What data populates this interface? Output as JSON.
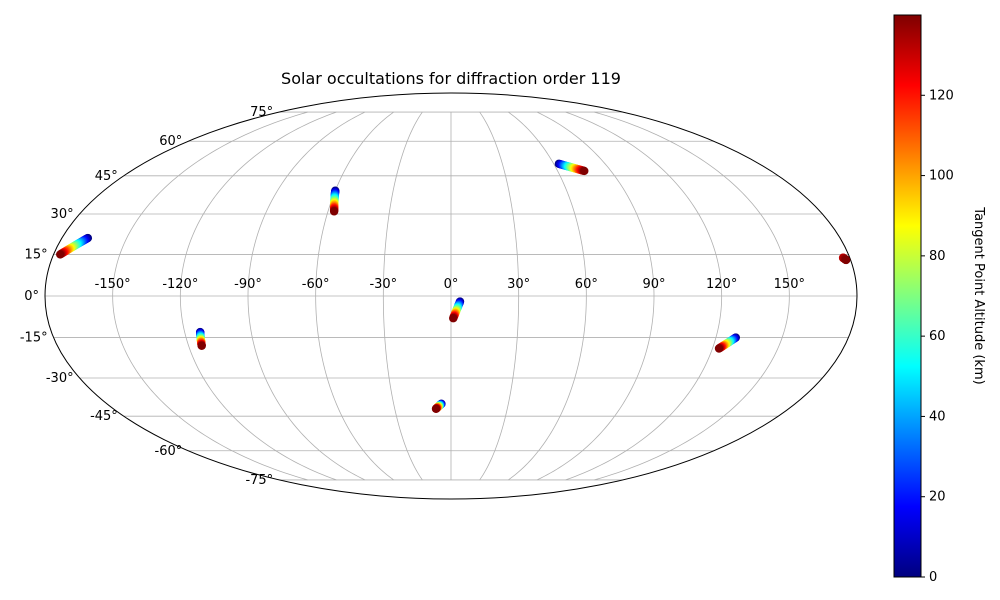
{
  "chart_data": {
    "type": "scatter",
    "projection": "mollweide",
    "title": "Solar occultations for diffraction order 119",
    "grid": true,
    "lon_ticks": [
      -150,
      -120,
      -90,
      -60,
      -30,
      0,
      30,
      60,
      90,
      120,
      150
    ],
    "lon_tick_labels": [
      "-150°",
      "-120°",
      "-90°",
      "-60°",
      "-30°",
      "0°",
      "30°",
      "60°",
      "90°",
      "120°",
      "150°"
    ],
    "lat_ticks": [
      75,
      60,
      45,
      30,
      15,
      0,
      -15,
      -30,
      -45,
      -60,
      -75
    ],
    "lat_tick_labels": [
      "75°",
      "60°",
      "45°",
      "30°",
      "15°",
      "0°",
      "-15°",
      "-30°",
      "-45°",
      "-60°",
      "-75°"
    ],
    "colorbar": {
      "label": "Tangent Point Altitude (km)",
      "colormap": "jet",
      "range": [
        0,
        140
      ],
      "ticks": [
        0,
        20,
        40,
        60,
        80,
        100,
        120
      ],
      "tick_labels": [
        "0",
        "20",
        "40",
        "60",
        "80",
        "100",
        "120"
      ]
    },
    "series": [
      {
        "lon_start": -168,
        "lat_start": 21,
        "lon_end": -177,
        "lat_end": 15,
        "alt_start": 0,
        "alt_end": 140
      },
      {
        "lon_start": -60,
        "lat_start": 39,
        "lon_end": -57,
        "lat_end": 31,
        "alt_start": 0,
        "alt_end": 140
      },
      {
        "lon_start": 63,
        "lat_start": 50,
        "lon_end": 75,
        "lat_end": 47,
        "alt_start": 0,
        "alt_end": 140
      },
      {
        "lon_start": 177,
        "lat_start": 13.8,
        "lon_end": 178,
        "lat_end": 13,
        "alt_start": 130,
        "alt_end": 140
      },
      {
        "lon_start": 4,
        "lat_start": -2,
        "lon_end": 1,
        "lat_end": -8,
        "alt_start": 0,
        "alt_end": 140
      },
      {
        "lon_start": -113,
        "lat_start": -13,
        "lon_end": -114,
        "lat_end": -18,
        "alt_start": 0,
        "alt_end": 140
      },
      {
        "lon_start": 129,
        "lat_start": -15,
        "lon_end": 123,
        "lat_end": -19,
        "alt_start": 0,
        "alt_end": 140
      },
      {
        "lon_start": -5,
        "lat_start": -40,
        "lon_end": -8,
        "lat_end": -42,
        "alt_start": 0,
        "alt_end": 140
      }
    ]
  }
}
